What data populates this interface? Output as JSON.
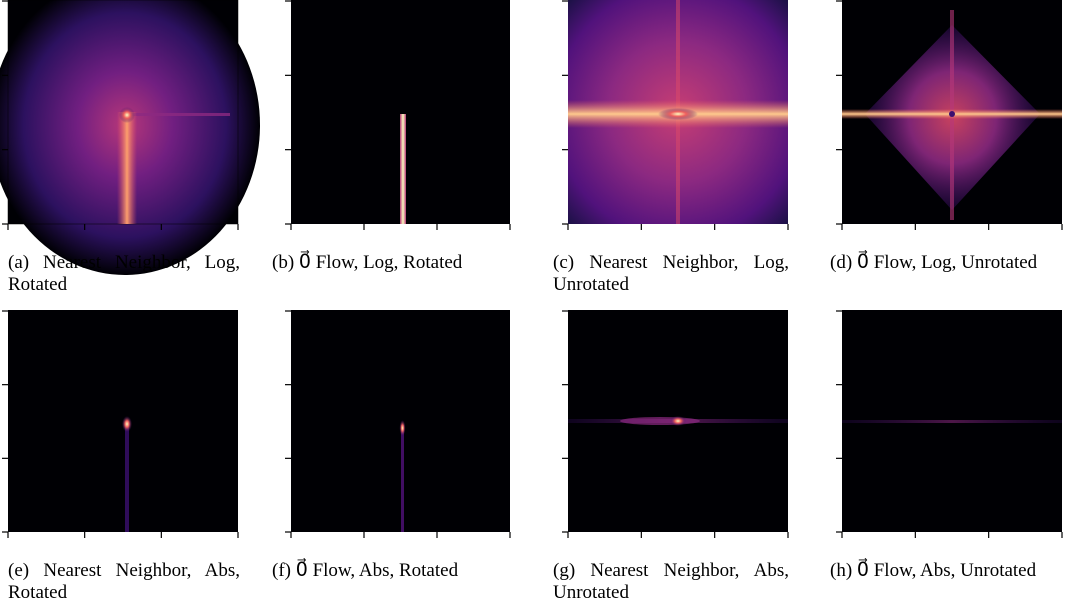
{
  "panels": [
    {
      "caption": "(a) Nearest Neighbor, Log, Rotated"
    },
    {
      "caption": "(b) 0⃗ Flow, Log, Rotated"
    },
    {
      "caption": "(c) Nearest Neighbor, Log, Unrotated"
    },
    {
      "caption": "(d) 0⃗ Flow, Log, Unrotated"
    },
    {
      "caption": "(e) Nearest Neighbor, Abs, Rotated"
    },
    {
      "caption": "(f) 0⃗ Flow, Abs, Rotated"
    },
    {
      "caption": "(g) Nearest Neighbor, Abs, Unrotated"
    },
    {
      "caption": "(h) 0⃗ Flow, Abs, Unrotated"
    }
  ]
}
